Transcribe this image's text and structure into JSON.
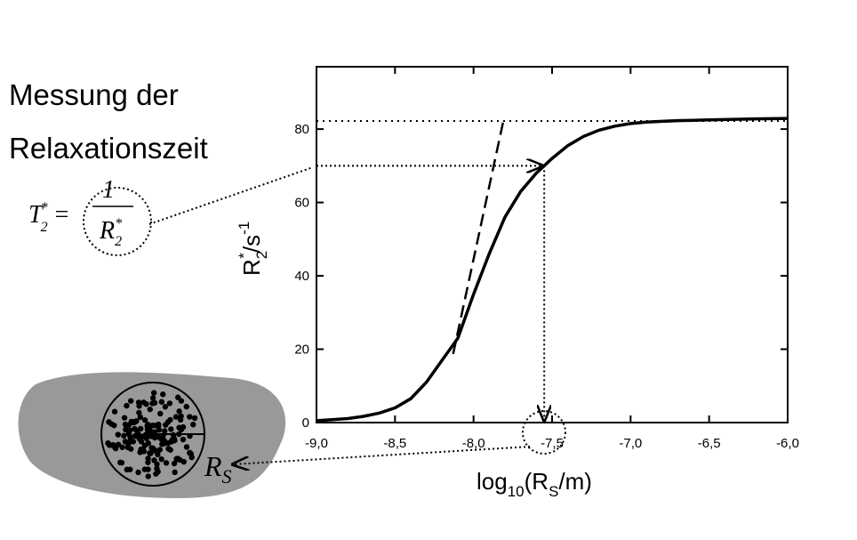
{
  "chart_data": {
    "type": "line",
    "annotation_lines": [
      "Messung der",
      "Relaxationszeit"
    ],
    "formula": {
      "lhs": "T",
      "lhs_sub": "2",
      "lhs_sup": "*",
      "eq": "=",
      "num": "1",
      "den": "R",
      "den_sub": "2",
      "den_sup": "*"
    },
    "radius_label": {
      "main": "R",
      "sub": "S"
    },
    "xlabel": {
      "pre": "log",
      "sub": "10",
      "mid": "(R",
      "sub2": "S",
      "post": "/m)"
    },
    "ylabel": {
      "main": "R",
      "sub": "2",
      "sup": "*",
      "mid": "/s",
      "sup2": "-1"
    },
    "xlim": [
      -9,
      -6
    ],
    "ylim": [
      0,
      97
    ],
    "xticks": [
      {
        "value": -9,
        "label": "-9,0"
      },
      {
        "value": -8.5,
        "label": "-8,5"
      },
      {
        "value": -8,
        "label": "-8,0"
      },
      {
        "value": -7.5,
        "label": "-7,5"
      },
      {
        "value": -7,
        "label": "-7,0"
      },
      {
        "value": -6.5,
        "label": "-6,5"
      },
      {
        "value": -6,
        "label": "-6,0"
      }
    ],
    "yticks": [
      0,
      20,
      40,
      60,
      80
    ],
    "series": [
      {
        "color": "#000000",
        "style": "solid",
        "x": [
          -9,
          -8.9,
          -8.8,
          -8.7,
          -8.6,
          -8.5,
          -8.4,
          -8.3,
          -8.2,
          -8.1,
          -8,
          -7.9,
          -7.8,
          -7.7,
          -7.6,
          -7.5,
          -7.4,
          -7.3,
          -7.2,
          -7.1,
          -7,
          -6.9,
          -6.8,
          -6.7,
          -6.6,
          -6.5,
          -6.4,
          -6.3,
          -6.2,
          -6.1,
          -6
        ],
        "values": [
          0.5,
          0.8,
          1.1,
          1.7,
          2.6,
          4,
          6.5,
          11,
          17,
          23,
          35,
          46,
          56,
          63,
          68,
          72,
          75.5,
          78,
          79.7,
          80.8,
          81.5,
          81.9,
          82.1,
          82.3,
          82.4,
          82.5,
          82.6,
          82.7,
          82.8,
          82.85,
          82.9
        ]
      },
      {
        "color": "#000000",
        "style": "dashed",
        "x": [
          -8.13,
          -7.81
        ],
        "values": [
          18.7,
          82.2
        ]
      }
    ],
    "saturation": 82.2,
    "marker": {
      "x": -7.55,
      "y": 70
    }
  }
}
